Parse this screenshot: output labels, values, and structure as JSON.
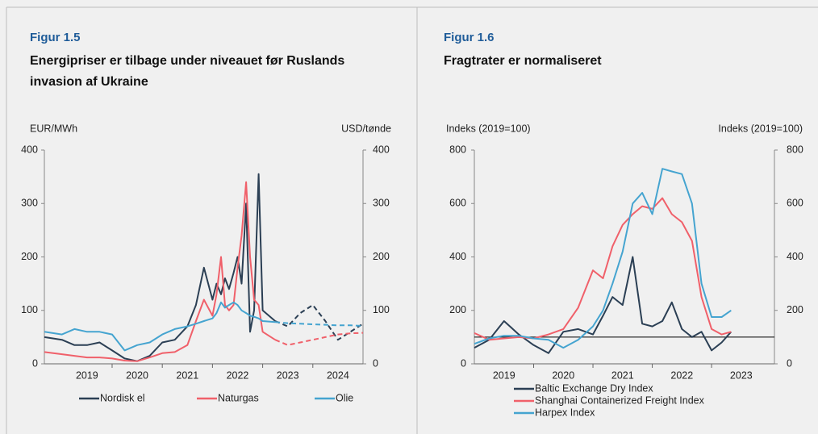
{
  "chart_data": [
    {
      "type": "line",
      "figure": "Figur 1.5",
      "title": "Energipriser er tilbage under niveauet før Ruslands invasion af Ukraine",
      "y_label": "EUR/MWh",
      "y2_label": "USD/tønde",
      "x": [
        2018.65,
        2019,
        2019.25,
        2019.5,
        2019.75,
        2020,
        2020.25,
        2020.5,
        2020.75,
        2021,
        2021.25,
        2021.5,
        2021.67,
        2021.83,
        2022,
        2022.08,
        2022.17,
        2022.25,
        2022.33,
        2022.42,
        2022.5,
        2022.58,
        2022.67,
        2022.75,
        2022.83,
        2022.92,
        2023,
        2023.25,
        2023.5,
        2023.75,
        2024,
        2024.25,
        2024.5,
        2024.75,
        2025
      ],
      "xlim": [
        2018.65,
        2025
      ],
      "xticks": [
        {
          "value": 2019.5,
          "label": "2019"
        },
        {
          "value": 2020.5,
          "label": "2020"
        },
        {
          "value": 2021.5,
          "label": "2021"
        },
        {
          "value": 2022.5,
          "label": "2022"
        },
        {
          "value": 2023.5,
          "label": "2023"
        },
        {
          "value": 2024.5,
          "label": "2024"
        }
      ],
      "ylim": [
        0,
        400
      ],
      "yticks": [
        0,
        100,
        200,
        300,
        400
      ],
      "y2lim": [
        0,
        400
      ],
      "y2ticks": [
        0,
        100,
        200,
        300,
        400
      ],
      "series": [
        {
          "name": "Nordisk el",
          "color": "#2b3f54",
          "values": [
            50,
            45,
            35,
            35,
            40,
            25,
            10,
            5,
            15,
            40,
            45,
            70,
            110,
            180,
            120,
            150,
            130,
            160,
            140,
            170,
            200,
            150,
            300,
            60,
            100,
            355,
            100,
            80,
            null,
            null,
            null,
            null,
            null,
            null,
            null
          ],
          "forecast": [
            null,
            null,
            null,
            null,
            null,
            null,
            null,
            null,
            null,
            null,
            null,
            null,
            null,
            null,
            null,
            null,
            null,
            null,
            null,
            null,
            null,
            null,
            null,
            null,
            null,
            null,
            null,
            80,
            70,
            95,
            110,
            80,
            45,
            60,
            75
          ]
        },
        {
          "name": "Naturgas",
          "color": "#f0606a",
          "values": [
            22,
            18,
            15,
            12,
            12,
            10,
            6,
            5,
            12,
            20,
            22,
            35,
            80,
            120,
            90,
            130,
            200,
            110,
            100,
            110,
            180,
            240,
            340,
            200,
            120,
            110,
            60,
            45,
            null,
            null,
            null,
            null,
            null,
            null,
            null
          ],
          "forecast": [
            null,
            null,
            null,
            null,
            null,
            null,
            null,
            null,
            null,
            null,
            null,
            null,
            null,
            null,
            null,
            null,
            null,
            null,
            null,
            null,
            null,
            null,
            null,
            null,
            null,
            null,
            null,
            45,
            35,
            40,
            45,
            50,
            55,
            57,
            58
          ]
        },
        {
          "name": "Olie",
          "color": "#45a4d0",
          "axis": "y2",
          "values": [
            60,
            55,
            65,
            60,
            60,
            55,
            25,
            35,
            40,
            55,
            65,
            70,
            75,
            80,
            85,
            95,
            115,
            105,
            110,
            115,
            110,
            100,
            95,
            90,
            88,
            85,
            80,
            78,
            null,
            null,
            null,
            null,
            null,
            null,
            null
          ],
          "forecast": [
            null,
            null,
            null,
            null,
            null,
            null,
            null,
            null,
            null,
            null,
            null,
            null,
            null,
            null,
            null,
            null,
            null,
            null,
            null,
            null,
            null,
            null,
            null,
            null,
            null,
            null,
            null,
            78,
            76,
            75,
            74,
            73,
            72,
            72,
            71
          ]
        }
      ]
    },
    {
      "type": "line",
      "figure": "Figur 1.6",
      "title": "Fragtrater er normaliseret",
      "y_label": "Indeks (2019=100)",
      "y2_label": "Indeks (2019=100)",
      "x": [
        2019.0,
        2019.25,
        2019.5,
        2019.75,
        2020.0,
        2020.25,
        2020.5,
        2020.75,
        2021.0,
        2021.17,
        2021.33,
        2021.5,
        2021.67,
        2021.83,
        2022.0,
        2022.17,
        2022.33,
        2022.5,
        2022.67,
        2022.83,
        2023.0,
        2023.17,
        2023.33
      ],
      "xlim": [
        2019.0,
        2024.06
      ],
      "xticks": [
        {
          "value": 2019.5,
          "label": "2019"
        },
        {
          "value": 2020.5,
          "label": "2020"
        },
        {
          "value": 2021.5,
          "label": "2021"
        },
        {
          "value": 2022.5,
          "label": "2022"
        },
        {
          "value": 2023.5,
          "label": "2023"
        }
      ],
      "ylim": [
        0,
        800
      ],
      "yticks": [
        0,
        200,
        400,
        600,
        800
      ],
      "y2lim": [
        0,
        800
      ],
      "y2ticks": [
        0,
        200,
        400,
        600,
        800
      ],
      "reference_line": 100,
      "series": [
        {
          "name": "Baltic Exchange Dry Index",
          "color": "#2b3f54",
          "values": [
            60,
            90,
            160,
            110,
            70,
            40,
            120,
            130,
            110,
            180,
            250,
            220,
            400,
            150,
            140,
            160,
            230,
            130,
            100,
            120,
            50,
            80,
            120
          ]
        },
        {
          "name": "Shanghai Containerized Freight Index",
          "color": "#f0606a",
          "values": [
            115,
            90,
            95,
            100,
            95,
            110,
            130,
            210,
            350,
            320,
            440,
            520,
            560,
            590,
            580,
            620,
            560,
            530,
            460,
            250,
            130,
            110,
            120
          ]
        },
        {
          "name": "Harpex Index",
          "color": "#45a4d0",
          "values": [
            75,
            95,
            105,
            105,
            95,
            90,
            60,
            90,
            140,
            200,
            300,
            420,
            600,
            640,
            560,
            730,
            720,
            710,
            600,
            300,
            175,
            175,
            200
          ]
        }
      ]
    }
  ]
}
